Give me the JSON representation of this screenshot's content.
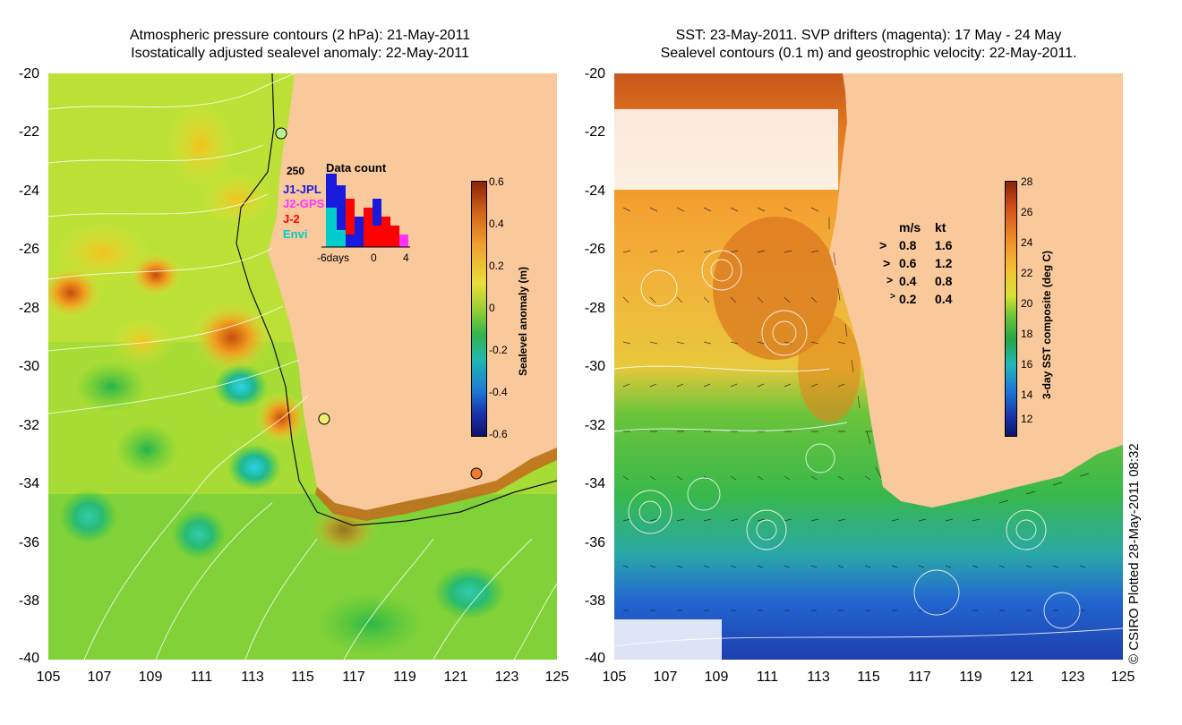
{
  "left_panel": {
    "title_line1": "Atmospheric pressure contours (2 hPa): 21-May-2011",
    "title_line2": "Isostatically adjusted sealevel anomaly: 22-May-2011",
    "colorbar_label": "Sealevel anomaly (m)",
    "colorbar_ticks": [
      "0.6",
      "0.4",
      "0.2",
      "0",
      "-0.2",
      "-0.4",
      "-0.6"
    ],
    "colorbar_range": [
      -0.6,
      0.6
    ],
    "inset": {
      "title": "Data count",
      "max_label": "250",
      "x_labels": [
        "-6days",
        "0",
        "4"
      ],
      "legend": [
        {
          "name": "J1-JPL",
          "color": "#1a1adc"
        },
        {
          "name": "J2-GPS",
          "color": "#ff33ff"
        },
        {
          "name": "J-2",
          "color": "#ff0000"
        },
        {
          "name": "Envi",
          "color": "#00cccc"
        }
      ]
    }
  },
  "right_panel": {
    "title_line1": "SST: 23-May-2011. SVP drifters (magenta): 17 May - 24 May",
    "title_line2": "Sealevel contours (0.1 m) and geostrophic velocity: 22-May-2011.",
    "colorbar_label": "3-day SST composite (deg C)",
    "colorbar_ticks": [
      "28",
      "26",
      "24",
      "22",
      "20",
      "18",
      "16",
      "14",
      "12"
    ],
    "colorbar_range": [
      11,
      28
    ],
    "speed_legend": {
      "header_ms": "m/s",
      "header_kt": "kt",
      "rows": [
        {
          "ms": "0.8",
          "kt": "1.6"
        },
        {
          "ms": "0.6",
          "kt": "1.2"
        },
        {
          "ms": "0.4",
          "kt": "0.8"
        },
        {
          "ms": "0.2",
          "kt": "0.4"
        }
      ]
    }
  },
  "axes": {
    "y_labels": [
      "-20",
      "-22",
      "-24",
      "-26",
      "-28",
      "-30",
      "-32",
      "-34",
      "-36",
      "-38",
      "-40"
    ],
    "x_labels": [
      "105",
      "107",
      "109",
      "111",
      "113",
      "115",
      "117",
      "119",
      "121",
      "123",
      "125"
    ],
    "lat_range": [
      -40,
      -20
    ],
    "lon_range": [
      105,
      125
    ]
  },
  "credit": "© CSIRO Plotted 28-May-2011 08:32",
  "colors": {
    "land": "#f9c89b",
    "sea_green": "#7ccf2a",
    "sea_yellow": "#d8e83a",
    "sst_warm": "#ff9a2a",
    "sst_cold": "#1f55d4"
  }
}
